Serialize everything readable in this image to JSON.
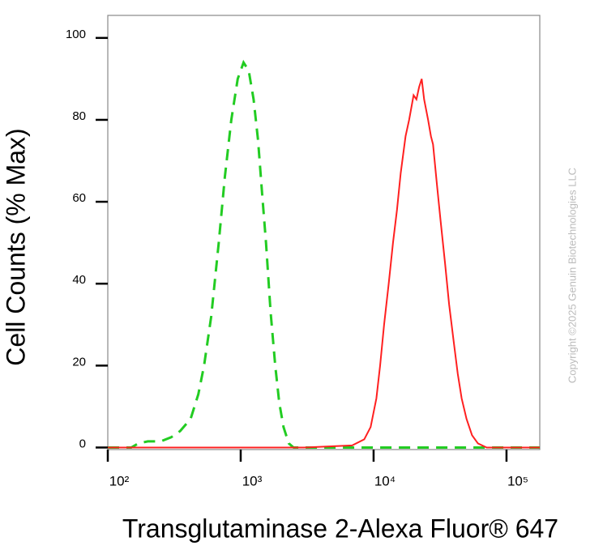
{
  "chart_data": {
    "type": "line",
    "y_label": "Cell Counts (% Max)",
    "x_label": "Transglutaminase 2-Alexa Fluor® 647",
    "watermark": "Copyright ©2025 Genuin Biotechnologies LLC",
    "x_scale": "log",
    "xlim": [
      100,
      178000
    ],
    "ylim": [
      -0.5,
      105.5
    ],
    "xticks": [
      {
        "value": 100,
        "label": "10²"
      },
      {
        "value": 1000,
        "label": "10³"
      },
      {
        "value": 10000,
        "label": "10⁴"
      },
      {
        "value": 100000,
        "label": "10⁵"
      }
    ],
    "yticks": [
      0,
      20,
      40,
      60,
      80,
      100
    ],
    "grid": false,
    "series": [
      {
        "color": "#22cc22",
        "dash": true,
        "x": [
          100,
          150,
          170,
          200,
          250,
          300,
          350,
          420,
          480,
          530,
          600,
          684,
          760,
          850,
          950,
          1050,
          1150,
          1250,
          1350,
          1450,
          1550,
          1680,
          1820,
          1950,
          2100,
          2300,
          2500,
          5000,
          20000,
          100000,
          178000
        ],
        "values": [
          0,
          0,
          1,
          1.5,
          1.5,
          2.5,
          4,
          7,
          13,
          20,
          32,
          50,
          66,
          80,
          90,
          94,
          92,
          85,
          75,
          62,
          50,
          33,
          20,
          11,
          5,
          1,
          0,
          0,
          0,
          0,
          0
        ]
      },
      {
        "color": "#ff2020",
        "dash": false,
        "x": [
          100,
          3000,
          6900,
          8500,
          9500,
          10500,
          11200,
          12000,
          13000,
          14000,
          15000,
          16000,
          17400,
          18500,
          20000,
          21000,
          22000,
          23000,
          24000,
          25700,
          27000,
          28000,
          30000,
          32000,
          34500,
          37000,
          40000,
          43000,
          46000,
          50000,
          55000,
          61000,
          71000,
          178000
        ],
        "values": [
          0,
          0,
          0.5,
          2,
          5,
          12,
          20,
          30,
          40,
          50,
          58,
          67,
          76,
          80,
          86,
          85,
          88,
          90,
          85,
          80,
          76,
          74,
          64,
          55,
          45,
          35,
          26,
          18,
          12,
          7,
          3,
          1,
          0,
          0
        ]
      }
    ]
  }
}
